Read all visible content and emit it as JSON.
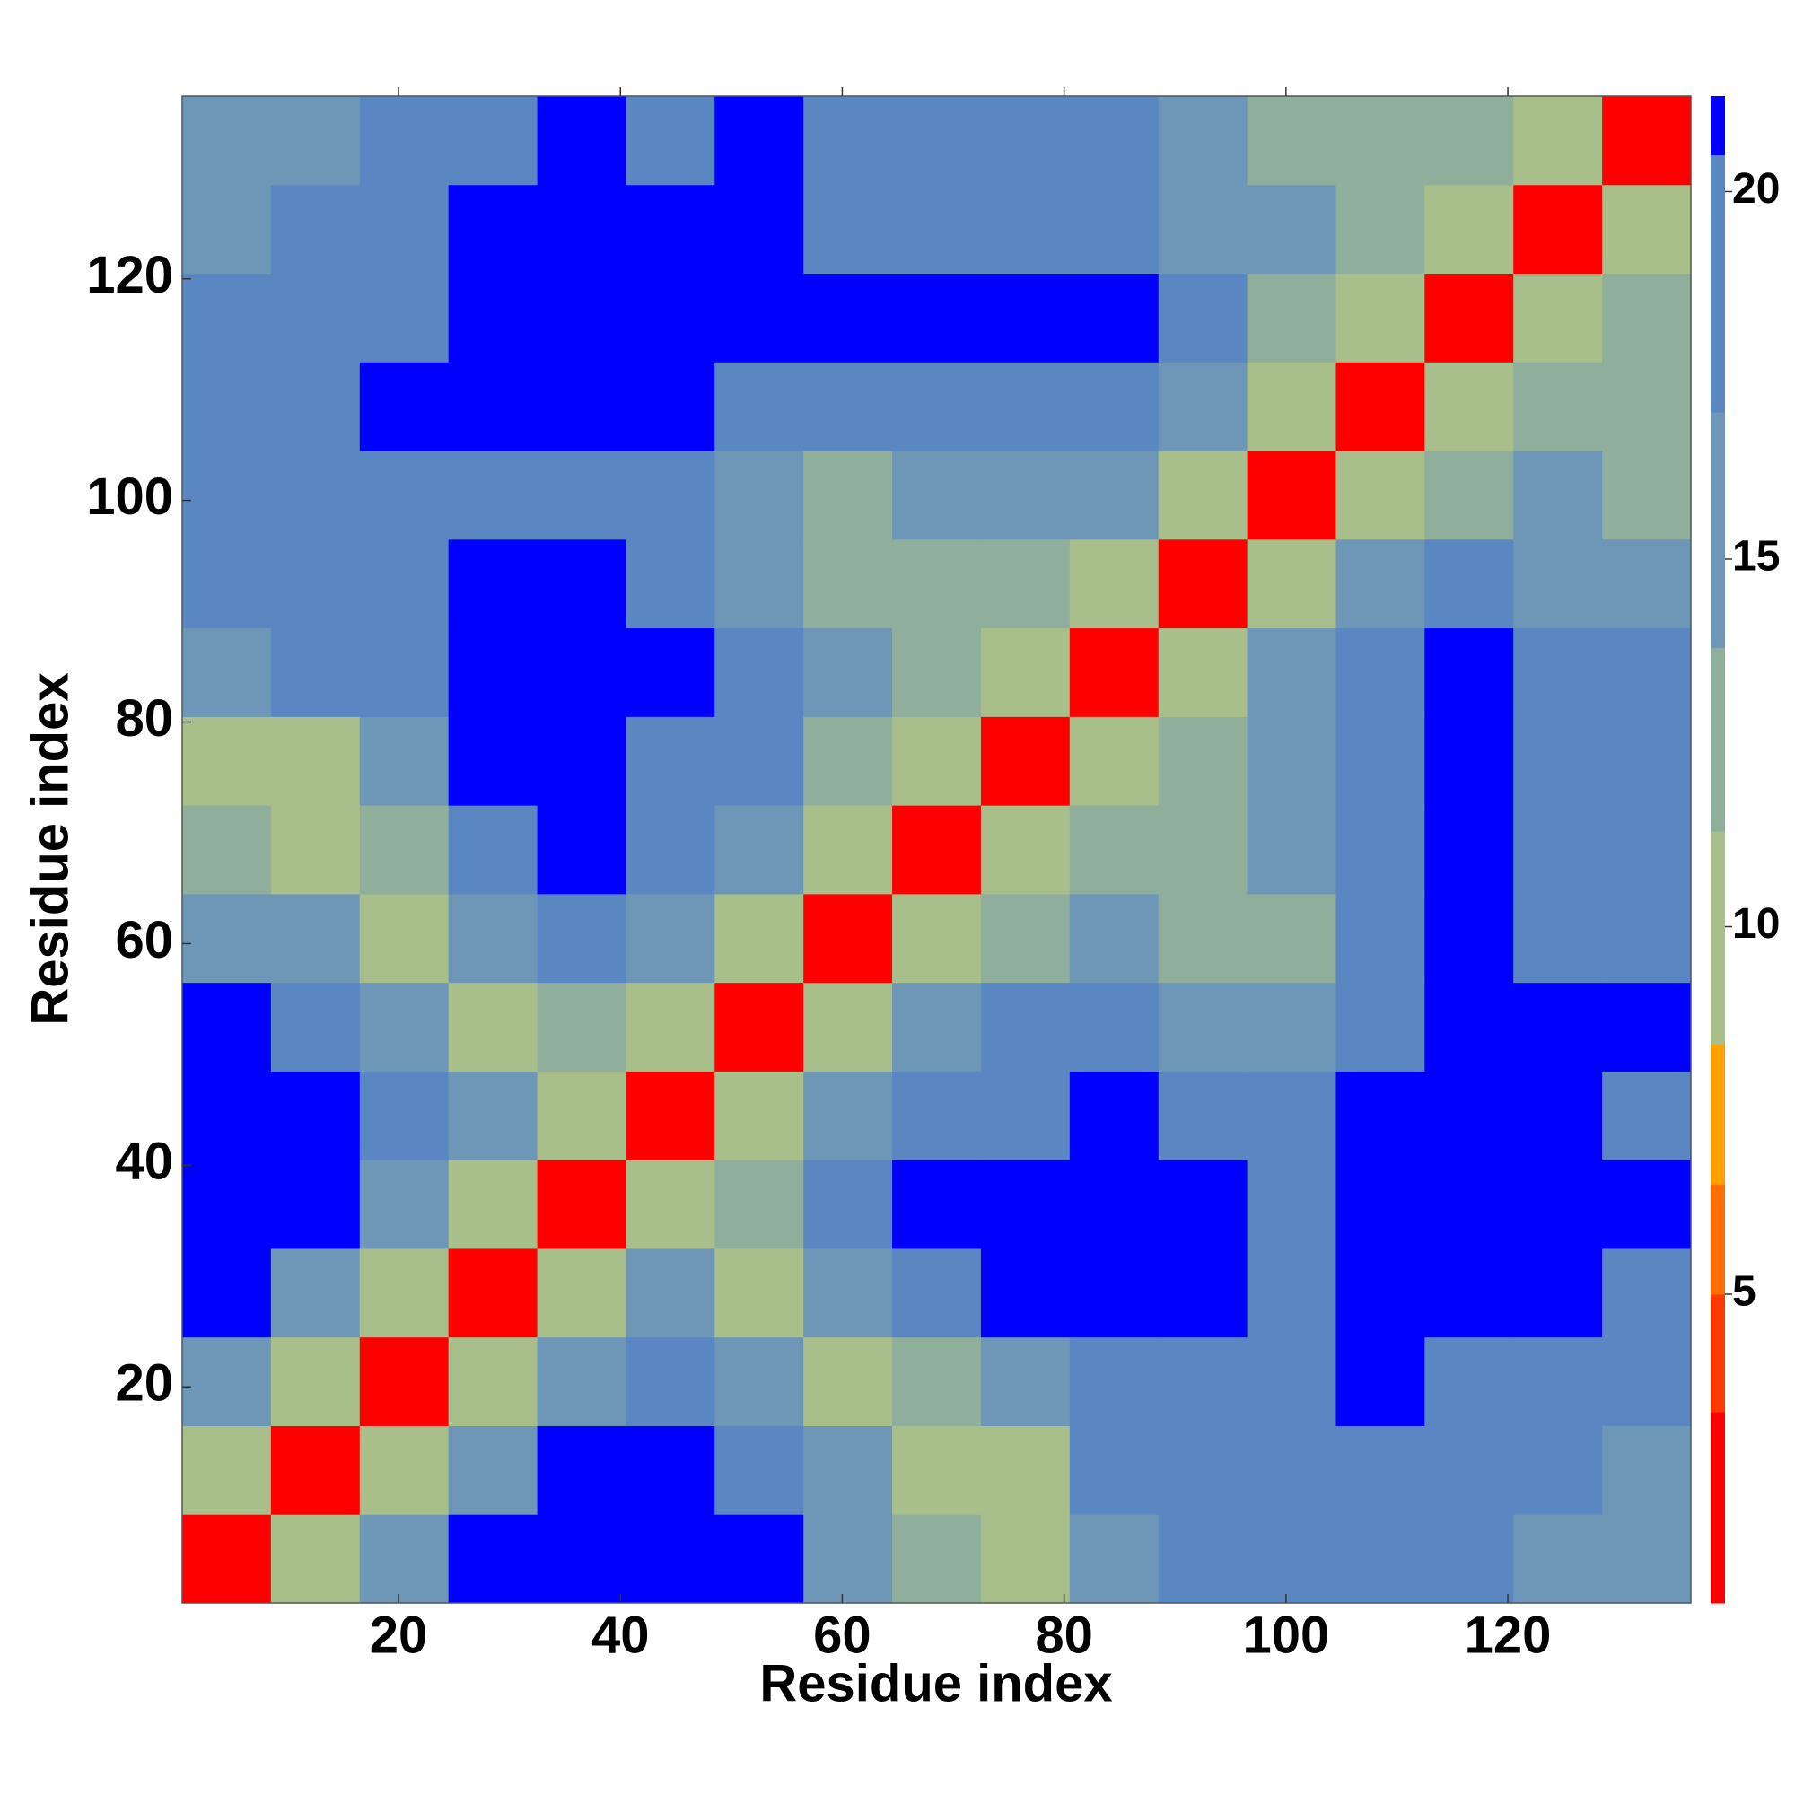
{
  "chart_data": {
    "type": "heatmap",
    "x_label": "Residue index",
    "y_label": "Residue index",
    "x_bins": [
      0.5,
      8.5,
      16.5,
      24.5,
      32.5,
      40.5,
      48.5,
      56.5,
      64.5,
      72.5,
      80.5,
      88.5,
      96.5,
      104.5,
      112.5,
      120.5,
      128.5,
      136.5
    ],
    "y_bins": [
      0.5,
      8.5,
      16.5,
      24.5,
      32.5,
      40.5,
      48.5,
      56.5,
      64.5,
      72.5,
      80.5,
      88.5,
      96.5,
      104.5,
      112.5,
      120.5,
      128.5,
      136.5
    ],
    "z": [
      [
        3,
        9,
        15,
        22,
        22,
        22,
        22,
        16,
        12,
        11,
        16,
        18,
        17,
        18,
        18,
        15,
        15
      ],
      [
        9,
        3,
        9,
        15,
        22,
        22,
        20,
        14,
        11,
        10,
        18,
        19,
        17,
        19,
        19,
        17,
        16
      ],
      [
        15,
        9,
        3,
        9,
        15,
        19,
        14,
        11,
        13,
        15,
        19,
        20,
        17,
        22,
        20,
        19,
        18
      ],
      [
        22,
        15,
        9,
        3,
        9,
        14,
        11,
        14,
        18,
        21,
        22,
        22,
        17,
        22,
        22,
        21,
        19
      ],
      [
        22,
        22,
        15,
        9,
        3,
        9,
        13,
        18,
        22,
        22,
        22,
        22,
        19,
        22,
        22,
        22,
        22
      ],
      [
        22,
        22,
        19,
        14,
        9,
        3,
        9,
        16,
        20,
        20,
        22,
        20,
        18,
        22,
        22,
        22,
        20
      ],
      [
        22,
        20,
        14,
        11,
        13,
        9,
        3,
        9,
        15,
        17,
        19,
        14,
        14,
        18,
        22,
        22,
        21
      ],
      [
        16,
        14,
        11,
        14,
        18,
        16,
        9,
        3,
        9,
        13,
        15,
        12,
        12,
        18,
        22,
        19,
        19
      ],
      [
        12,
        11,
        13,
        18,
        22,
        20,
        15,
        9,
        3,
        9,
        13,
        12,
        15,
        20,
        21,
        19,
        17
      ],
      [
        11,
        10,
        15,
        21,
        22,
        20,
        17,
        13,
        9,
        3,
        9,
        13,
        16,
        20,
        21,
        20,
        18
      ],
      [
        16,
        18,
        19,
        22,
        22,
        22,
        19,
        15,
        13,
        9,
        3,
        9,
        15,
        17,
        21,
        18,
        17
      ],
      [
        18,
        19,
        20,
        22,
        22,
        20,
        14,
        12,
        12,
        13,
        9,
        3,
        9,
        15,
        19,
        16,
        15
      ],
      [
        17,
        17,
        17,
        17,
        19,
        18,
        14,
        12,
        15,
        16,
        15,
        9,
        3,
        9,
        13,
        14,
        13
      ],
      [
        18,
        19,
        22,
        22,
        22,
        22,
        18,
        18,
        20,
        20,
        17,
        15,
        9,
        3,
        9,
        12,
        13
      ],
      [
        18,
        19,
        20,
        22,
        22,
        22,
        22,
        22,
        21,
        21,
        21,
        19,
        13,
        9,
        3,
        9,
        12
      ],
      [
        15,
        17,
        19,
        21,
        22,
        22,
        22,
        19,
        19,
        20,
        18,
        16,
        14,
        12,
        9,
        3,
        9
      ],
      [
        15,
        16,
        18,
        19,
        22,
        20,
        21,
        19,
        17,
        18,
        17,
        15,
        13,
        13,
        12,
        9,
        3
      ]
    ],
    "xlim": [
      0.5,
      136.5
    ],
    "ylim": [
      0.5,
      136.5
    ],
    "xticks": [
      20,
      40,
      60,
      80,
      100,
      120
    ],
    "yticks": [
      20,
      40,
      60,
      80,
      100,
      120
    ],
    "clim": [
      0.8,
      21.3
    ],
    "levels": [
      3.4,
      5,
      6.5,
      8.4,
      11.3,
      13.8,
      17,
      20.5
    ],
    "colors": [
      "#ff0000",
      "#ff3a00",
      "#ff6e00",
      "#ffa200",
      "#a8bf8c",
      "#8fae9c",
      "#6e96b6",
      "#5a87c2",
      "#0000ff"
    ],
    "cticks": [
      5,
      10,
      15,
      20
    ]
  }
}
